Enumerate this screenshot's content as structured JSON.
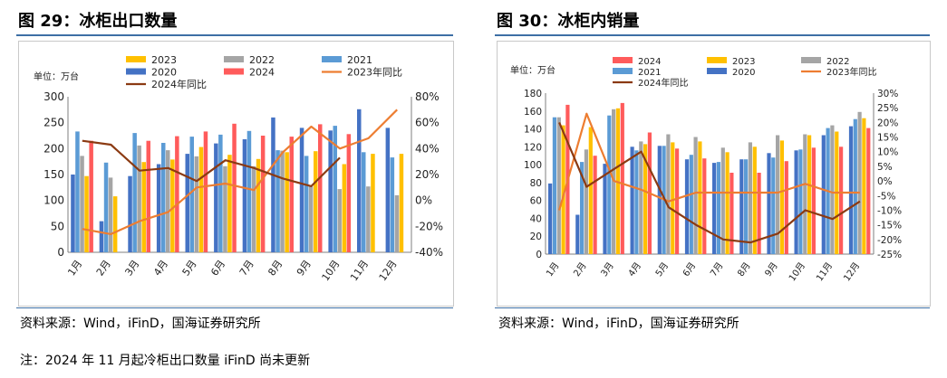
{
  "left_panel": {
    "title": "图 29：冰柜出口数量",
    "source": "资料来源：Wind，iFinD，国海证券研究所"
  },
  "right_panel": {
    "title": "图 30：冰柜内销量",
    "source": "资料来源：Wind，iFinD，国海证券研究所"
  },
  "note": "注：2024 年 11 月起冷柜出口数量 iFinD 尚未更新",
  "colors": {
    "c2023": "#ffc000",
    "c2022": "#a5a5a5",
    "c2021": "#5b9bd5",
    "c2020": "#4472c4",
    "c2024": "#ff5b5b",
    "yoy2023": "#ed7d31",
    "yoy2024": "#8b3a12",
    "rule": "#3d6fa5"
  },
  "chart_data": [
    {
      "type": "bar",
      "unit_label": "单位：万台",
      "categories": [
        "1月",
        "2月",
        "3月",
        "4月",
        "5月",
        "6月",
        "7月",
        "8月",
        "9月",
        "10月",
        "11月",
        "12月"
      ],
      "ylim": [
        0,
        300
      ],
      "y_ticks": [
        "0",
        "50",
        "100",
        "150",
        "200",
        "250",
        "300"
      ],
      "y2lim": [
        -40,
        80
      ],
      "y2_ticks": [
        "-40%",
        "-20%",
        "0%",
        "20%",
        "40%",
        "60%",
        "80%"
      ],
      "bar_order": [
        "2020",
        "2021",
        "2022",
        "2023",
        "2024"
      ],
      "legend": [
        {
          "name": "2023",
          "kind": "bar",
          "color_key": "c2023"
        },
        {
          "name": "2022",
          "kind": "bar",
          "color_key": "c2022"
        },
        {
          "name": "2021",
          "kind": "bar",
          "color_key": "c2021"
        },
        {
          "name": "2020",
          "kind": "bar",
          "color_key": "c2020"
        },
        {
          "name": "2024",
          "kind": "bar",
          "color_key": "c2024"
        },
        {
          "name": "2023年同比",
          "kind": "line",
          "color_key": "yoy2023"
        },
        {
          "name": "2024年同比",
          "kind": "line",
          "color_key": "yoy2024"
        }
      ],
      "series": [
        {
          "name": "2020",
          "color_key": "c2020",
          "values": [
            150,
            60,
            147,
            170,
            190,
            210,
            218,
            260,
            240,
            235,
            276,
            240
          ]
        },
        {
          "name": "2021",
          "color_key": "c2021",
          "values": [
            233,
            173,
            230,
            211,
            223,
            227,
            234,
            197,
            186,
            244,
            193,
            183
          ]
        },
        {
          "name": "2022",
          "color_key": "c2022",
          "values": [
            186,
            144,
            206,
            197,
            185,
            166,
            166,
            196,
            127,
            122,
            127,
            110
          ]
        },
        {
          "name": "2023",
          "color_key": "c2023",
          "values": [
            147,
            108,
            174,
            179,
            203,
            188,
            180,
            193,
            195,
            170,
            190,
            190
          ]
        },
        {
          "name": "2024",
          "color_key": "c2024",
          "values": [
            215,
            0,
            215,
            224,
            233,
            248,
            225,
            223,
            247,
            228,
            null,
            null
          ]
        }
      ],
      "yoy_lines": [
        {
          "name": "2023年同比",
          "color_key": "yoy2023",
          "values": [
            -22,
            -26,
            -16,
            -9,
            10,
            13,
            8,
            37,
            57,
            40,
            48,
            70
          ]
        },
        {
          "name": "2024年同比",
          "color_key": "yoy2024",
          "values": [
            46,
            43,
            23,
            25,
            15,
            31,
            25,
            17,
            11,
            33,
            null,
            null
          ]
        }
      ]
    },
    {
      "type": "bar",
      "unit_label": "单位：万台",
      "categories": [
        "1月",
        "2月",
        "3月",
        "4月",
        "5月",
        "6月",
        "7月",
        "8月",
        "9月",
        "10月",
        "11月",
        "12月"
      ],
      "ylim": [
        0,
        180
      ],
      "y_ticks": [
        "0",
        "20",
        "40",
        "60",
        "80",
        "100",
        "120",
        "140",
        "160",
        "180"
      ],
      "y2lim": [
        -25,
        30
      ],
      "y2_ticks": [
        "-25%",
        "-20%",
        "-15%",
        "-10%",
        "-5%",
        "0%",
        "5%",
        "10%",
        "15%",
        "20%",
        "25%",
        "30%"
      ],
      "bar_order": [
        "2020",
        "2021",
        "2022",
        "2023",
        "2024"
      ],
      "legend": [
        {
          "name": "2024",
          "kind": "bar",
          "color_key": "c2024"
        },
        {
          "name": "2023",
          "kind": "bar",
          "color_key": "c2023"
        },
        {
          "name": "2022",
          "kind": "bar",
          "color_key": "c2022"
        },
        {
          "name": "2021",
          "kind": "bar",
          "color_key": "c2021"
        },
        {
          "name": "2020",
          "kind": "bar",
          "color_key": "c2020"
        },
        {
          "name": "2023年同比",
          "kind": "line",
          "color_key": "yoy2023"
        },
        {
          "name": "2024年同比",
          "kind": "line",
          "color_key": "yoy2024"
        }
      ],
      "series": [
        {
          "name": "2020",
          "color_key": "c2020",
          "values": [
            79,
            44,
            101,
            120,
            121,
            106,
            102,
            106,
            113,
            116,
            133,
            143
          ]
        },
        {
          "name": "2021",
          "color_key": "c2021",
          "values": [
            153,
            103,
            155,
            116,
            121,
            111,
            103,
            106,
            108,
            117,
            141,
            151
          ]
        },
        {
          "name": "2022",
          "color_key": "c2022",
          "values": [
            153,
            117,
            162,
            126,
            134,
            131,
            119,
            125,
            133,
            134,
            144,
            159
          ]
        },
        {
          "name": "2023",
          "color_key": "c2023",
          "values": [
            144,
            142,
            163,
            123,
            125,
            126,
            114,
            120,
            127,
            133,
            137,
            152
          ]
        },
        {
          "name": "2024",
          "color_key": "c2024",
          "values": [
            167,
            110,
            169,
            136,
            118,
            107,
            91,
            91,
            104,
            119,
            120,
            141
          ]
        }
      ],
      "yoy_lines": [
        {
          "name": "2023年同比",
          "color_key": "yoy2023",
          "values": [
            -10,
            23,
            0,
            -3,
            -7,
            -4,
            -4,
            -4,
            -4,
            -1,
            -4,
            -4
          ]
        },
        {
          "name": "2024年同比",
          "color_key": "yoy2024",
          "values": [
            20,
            -2,
            4,
            10,
            -9,
            -15,
            -20,
            -21,
            -18,
            -10,
            -13,
            -7
          ]
        }
      ]
    }
  ]
}
